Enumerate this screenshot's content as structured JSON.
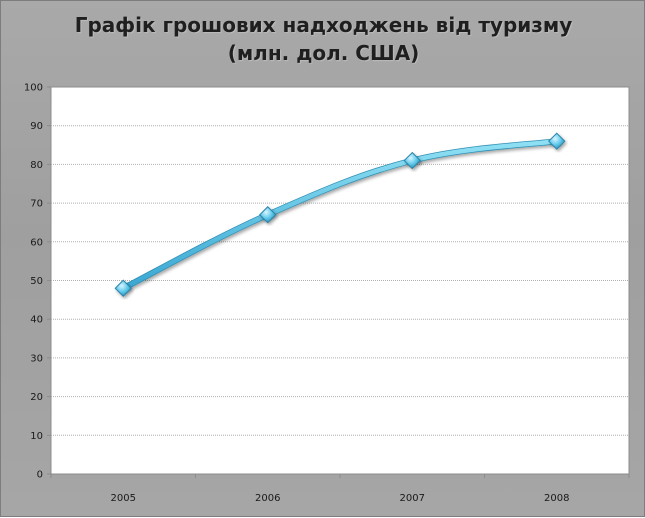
{
  "chart_data": {
    "type": "line",
    "title": "Графік грошових надходжень від туризму\n(млн. дол. США)",
    "categories": [
      "2005",
      "2006",
      "2007",
      "2008"
    ],
    "series": [
      {
        "values": [
          48,
          67,
          81,
          86
        ]
      }
    ],
    "ylim": [
      0,
      100
    ],
    "yticks": [
      "0",
      "10",
      "20",
      "30",
      "40",
      "50",
      "60",
      "70",
      "80",
      "90",
      "100"
    ],
    "grid": true,
    "legend": "none",
    "colors": {
      "line": "#5bc0de",
      "line_dark": "#2f8fb3",
      "marker": "#4fb8dd",
      "plot_bg": "#ffffff",
      "frame_bg": "#a6a6a6",
      "grid": "#b0b0b0"
    }
  }
}
